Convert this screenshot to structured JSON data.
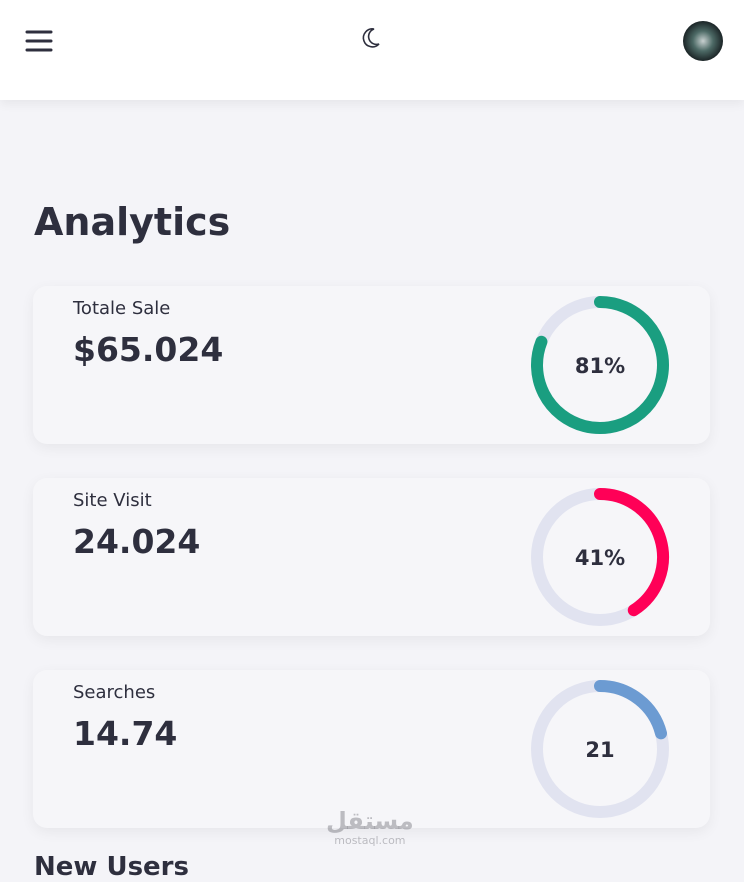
{
  "header": {
    "avatar_alt": null
  },
  "page_title": "Analytics",
  "cards": [
    {
      "label": "Totale Sale",
      "value": "$65.024",
      "progress": 81,
      "progress_label": "81%",
      "color": "#1a9e80"
    },
    {
      "label": "Site Visit",
      "value": "24.024",
      "progress": 41,
      "progress_label": "41%",
      "color": "#ff0057"
    },
    {
      "label": "Searches",
      "value": "14.74",
      "progress": 21,
      "progress_label": "21",
      "color": "#6c9bd2"
    }
  ],
  "next_section_title": "New Users",
  "watermark": {
    "logo": "مستقل",
    "site": "mostaql.com"
  }
}
